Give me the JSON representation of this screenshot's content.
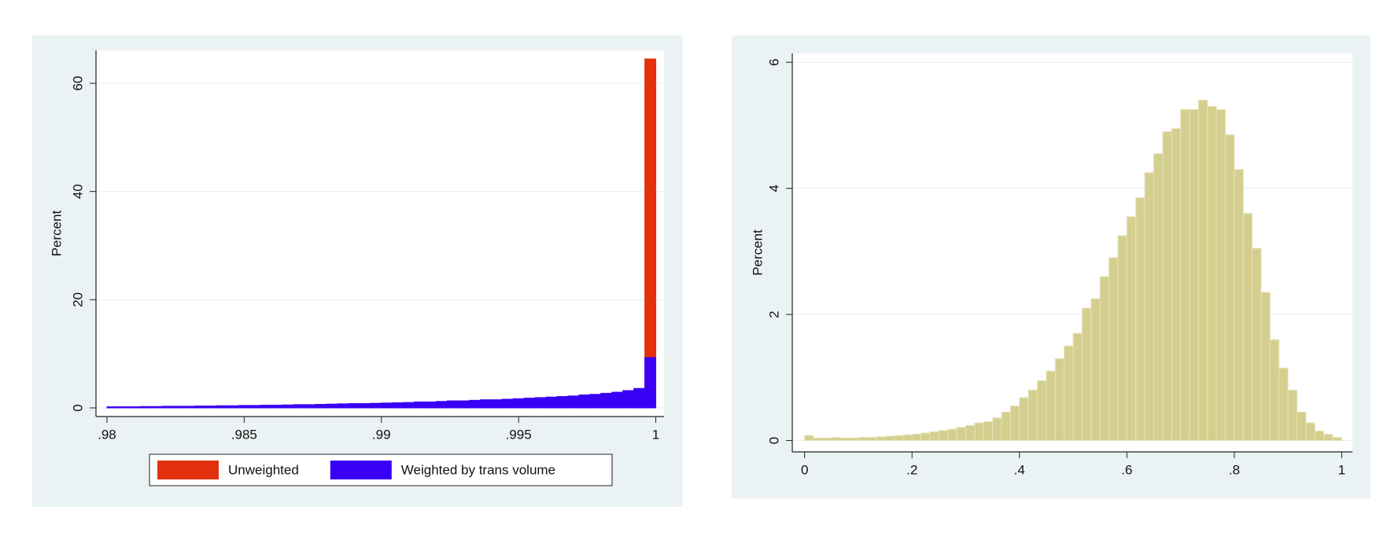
{
  "chart_data": [
    {
      "type": "histogram",
      "ylabel": "Percent",
      "bins": [
        0.98,
        0.9804,
        0.9808,
        0.9812,
        0.9816,
        0.982,
        0.9824,
        0.9828,
        0.9832,
        0.9836,
        0.984,
        0.9844,
        0.9848,
        0.9852,
        0.9856,
        0.986,
        0.9864,
        0.9868,
        0.9872,
        0.9876,
        0.988,
        0.9884,
        0.9888,
        0.9892,
        0.9896,
        0.99,
        0.9904,
        0.9908,
        0.9912,
        0.9916,
        0.992,
        0.9924,
        0.9928,
        0.9932,
        0.9936,
        0.994,
        0.9944,
        0.9948,
        0.9952,
        0.9956,
        0.996,
        0.9964,
        0.9968,
        0.9972,
        0.9976,
        0.998,
        0.9984,
        0.9988,
        0.9992,
        0.9996,
        1.0
      ],
      "series": [
        {
          "name": "Unweighted",
          "color": "#e3300f",
          "values": [
            0.1,
            0.1,
            0.1,
            0.1,
            0.1,
            0.1,
            0.1,
            0.1,
            0.1,
            0.1,
            0.15,
            0.15,
            0.15,
            0.15,
            0.15,
            0.15,
            0.15,
            0.15,
            0.15,
            0.15,
            0.2,
            0.2,
            0.2,
            0.2,
            0.2,
            0.2,
            0.2,
            0.2,
            0.2,
            0.2,
            0.25,
            0.25,
            0.25,
            0.25,
            0.25,
            0.25,
            0.25,
            0.25,
            0.25,
            0.25,
            0.3,
            0.3,
            0.35,
            0.35,
            0.4,
            0.4,
            0.5,
            0.6,
            0.8,
            64.5
          ]
        },
        {
          "name": "Weighted by trans volume",
          "color": "#3a00f5",
          "values": [
            0.2,
            0.2,
            0.2,
            0.25,
            0.25,
            0.3,
            0.3,
            0.3,
            0.35,
            0.35,
            0.4,
            0.4,
            0.45,
            0.45,
            0.5,
            0.5,
            0.55,
            0.6,
            0.6,
            0.65,
            0.7,
            0.75,
            0.8,
            0.8,
            0.85,
            0.9,
            0.95,
            1.0,
            1.1,
            1.1,
            1.2,
            1.3,
            1.3,
            1.4,
            1.5,
            1.5,
            1.6,
            1.7,
            1.8,
            1.9,
            2.0,
            2.1,
            2.2,
            2.4,
            2.5,
            2.7,
            2.9,
            3.2,
            3.6,
            9.3
          ]
        }
      ],
      "xlim": [
        0.9796,
        1.0003
      ],
      "xticks": [
        {
          "value": 0.98,
          "label": ".98"
        },
        {
          "value": 0.985,
          "label": ".985"
        },
        {
          "value": 0.99,
          "label": ".99"
        },
        {
          "value": 0.995,
          "label": ".995"
        },
        1
      ],
      "ylim": [
        -1.6,
        66.1
      ],
      "yticks": [
        0,
        20,
        40,
        60
      ],
      "grid": true
    },
    {
      "type": "histogram",
      "ylabel": "Percent",
      "bins": [
        0,
        0.0167,
        0.0333,
        0.05,
        0.0667,
        0.0833,
        0.1,
        0.1167,
        0.1333,
        0.15,
        0.1667,
        0.1833,
        0.2,
        0.2167,
        0.2333,
        0.25,
        0.2667,
        0.2833,
        0.3,
        0.3167,
        0.3333,
        0.35,
        0.3667,
        0.3833,
        0.4,
        0.4167,
        0.4333,
        0.45,
        0.4667,
        0.4833,
        0.5,
        0.5167,
        0.5333,
        0.55,
        0.5667,
        0.5833,
        0.6,
        0.6167,
        0.6333,
        0.65,
        0.6667,
        0.6833,
        0.7,
        0.7167,
        0.7333,
        0.75,
        0.7667,
        0.7833,
        0.8,
        0.8167,
        0.8333,
        0.85,
        0.8667,
        0.8833,
        0.9,
        0.9167,
        0.9333,
        0.95,
        0.9667,
        0.9833,
        1
      ],
      "values": [
        0.08,
        0.04,
        0.04,
        0.05,
        0.04,
        0.04,
        0.05,
        0.05,
        0.06,
        0.07,
        0.08,
        0.09,
        0.1,
        0.12,
        0.14,
        0.16,
        0.18,
        0.21,
        0.24,
        0.28,
        0.3,
        0.36,
        0.45,
        0.55,
        0.68,
        0.8,
        0.95,
        1.1,
        1.3,
        1.5,
        1.7,
        2.1,
        2.25,
        2.6,
        2.9,
        3.25,
        3.55,
        3.85,
        4.25,
        4.55,
        4.9,
        4.95,
        5.25,
        5.25,
        5.4,
        5.3,
        5.25,
        4.85,
        4.3,
        3.6,
        3.05,
        2.35,
        1.6,
        1.15,
        0.8,
        0.45,
        0.28,
        0.15,
        0.1,
        0.05
      ],
      "color": "#d4cf8e",
      "xlim": [
        -0.023,
        1.02
      ],
      "xticks": [
        0,
        {
          "value": 0.2,
          "label": ".2"
        },
        {
          "value": 0.4,
          "label": ".4"
        },
        {
          "value": 0.6,
          "label": ".6"
        },
        {
          "value": 0.8,
          "label": ".8"
        },
        1
      ],
      "ylim": [
        -0.18,
        6.14
      ],
      "yticks": [
        0,
        2,
        4,
        6
      ],
      "grid": true
    }
  ]
}
